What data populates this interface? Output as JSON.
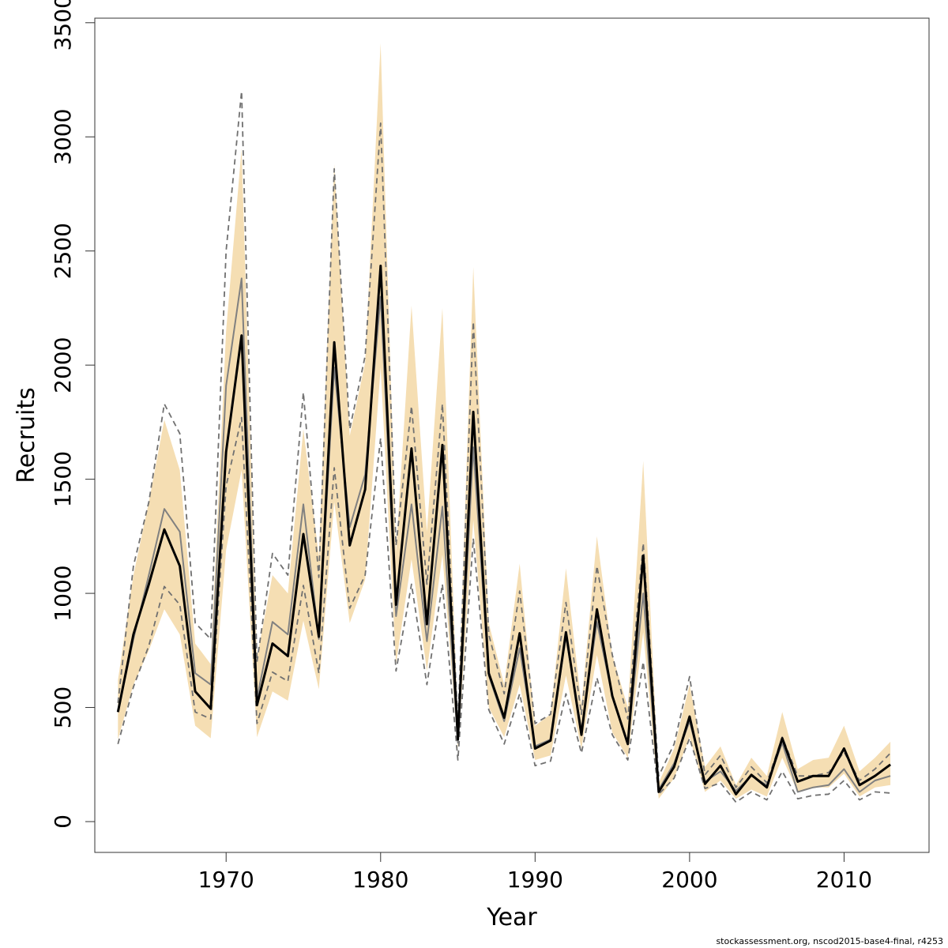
{
  "chart_data": {
    "type": "line",
    "title": "",
    "xlabel": "Year",
    "ylabel": "Recruits",
    "xlim": [
      1961.5,
      2015.5
    ],
    "ylim": [
      -135,
      3520
    ],
    "x_ticks": [
      1970,
      1980,
      1990,
      2000,
      2010
    ],
    "x_tick_labels": [
      "1970",
      "1980",
      "1990",
      "2000",
      "2010"
    ],
    "y_ticks": [
      0,
      500,
      1000,
      1500,
      2000,
      2500,
      3000,
      3500
    ],
    "y_tick_labels": [
      "0",
      "500",
      "1000",
      "1500",
      "2000",
      "2500",
      "3000",
      "3500"
    ],
    "grid": false,
    "legend": "none",
    "colors": {
      "band": "#f5deb3",
      "estimate": "#000000",
      "alt_median": "#808080",
      "alt_ci": "#707070"
    },
    "x": [
      1963,
      1964,
      1965,
      1966,
      1967,
      1968,
      1969,
      1970,
      1971,
      1972,
      1973,
      1974,
      1975,
      1976,
      1977,
      1978,
      1979,
      1980,
      1981,
      1982,
      1983,
      1984,
      1985,
      1986,
      1987,
      1988,
      1989,
      1990,
      1991,
      1992,
      1993,
      1994,
      1995,
      1996,
      1997,
      1998,
      1999,
      2000,
      2001,
      2002,
      2003,
      2004,
      2005,
      2006,
      2007,
      2008,
      2009,
      2010,
      2011,
      2012,
      2013
    ],
    "series": [
      {
        "role": "ci_band",
        "lower": [
          360,
          600,
          750,
          930,
          820,
          420,
          365,
          1190,
          1540,
          370,
          570,
          530,
          880,
          580,
          1400,
          870,
          1060,
          1990,
          690,
          1150,
          660,
          1170,
          320,
          1320,
          500,
          370,
          600,
          270,
          290,
          640,
          320,
          730,
          390,
          280,
          830,
          100,
          190,
          370,
          130,
          180,
          100,
          140,
          110,
          280,
          130,
          150,
          150,
          210,
          110,
          150,
          160
        ],
        "upper": [
          620,
          1080,
          1400,
          1760,
          1540,
          780,
          690,
          2150,
          2950,
          720,
          1080,
          1000,
          1720,
          1160,
          2880,
          1690,
          2010,
          3410,
          1180,
          2260,
          1270,
          2250,
          440,
          2430,
          870,
          600,
          1130,
          420,
          470,
          1110,
          510,
          1250,
          730,
          500,
          1580,
          170,
          320,
          600,
          240,
          330,
          160,
          280,
          200,
          480,
          230,
          270,
          280,
          420,
          220,
          280,
          350
        ]
      },
      {
        "role": "estimate",
        "values": [
          480,
          820,
          1040,
          1280,
          1120,
          570,
          495,
          1620,
          2130,
          510,
          780,
          725,
          1260,
          810,
          2100,
          1210,
          1455,
          2435,
          950,
          1635,
          865,
          1650,
          360,
          1795,
          650,
          455,
          825,
          320,
          355,
          830,
          380,
          930,
          550,
          340,
          1165,
          130,
          240,
          460,
          165,
          245,
          120,
          205,
          150,
          365,
          175,
          200,
          200,
          320,
          160,
          200,
          250
        ]
      },
      {
        "role": "alt_median",
        "values": [
          480,
          800,
          1080,
          1370,
          1270,
          650,
          600,
          1910,
          2380,
          540,
          875,
          820,
          1390,
          800,
          1990,
          1290,
          1520,
          2300,
          900,
          1390,
          790,
          1380,
          345,
          1640,
          640,
          440,
          760,
          330,
          360,
          810,
          400,
          875,
          550,
          340,
          1000,
          140,
          255,
          440,
          175,
          220,
          135,
          200,
          160,
          345,
          130,
          150,
          160,
          230,
          130,
          180,
          200
        ]
      },
      {
        "role": "alt_ci_lower",
        "values": [
          340,
          590,
          770,
          1030,
          950,
          480,
          450,
          1470,
          1770,
          430,
          655,
          615,
          1035,
          650,
          1550,
          935,
          1080,
          1680,
          660,
          1040,
          600,
          1040,
          270,
          1240,
          490,
          340,
          560,
          245,
          265,
          560,
          300,
          630,
          380,
          270,
          700,
          120,
          190,
          365,
          145,
          170,
          85,
          130,
          95,
          220,
          100,
          115,
          120,
          180,
          95,
          130,
          125
        ]
      },
      {
        "role": "alt_ci_upper",
        "values": [
          520,
          1120,
          1400,
          1830,
          1700,
          870,
          800,
          2500,
          3200,
          700,
          1175,
          1080,
          1880,
          1070,
          2860,
          1720,
          2040,
          3060,
          1210,
          1820,
          1040,
          1830,
          430,
          2190,
          820,
          560,
          1010,
          430,
          470,
          960,
          470,
          1120,
          730,
          450,
          1220,
          200,
          340,
          635,
          205,
          290,
          150,
          240,
          170,
          370,
          200,
          200,
          215,
          305,
          180,
          230,
          300
        ]
      }
    ]
  },
  "footer": "stockassessment.org, nscod2015-base4-final, r4253"
}
